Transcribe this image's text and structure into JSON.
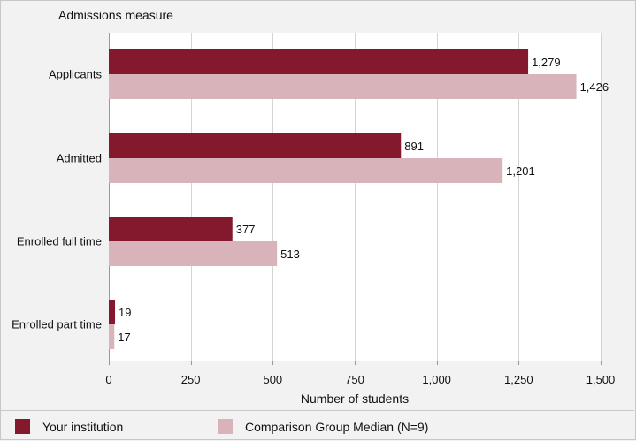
{
  "chart_data": {
    "type": "bar",
    "orientation": "horizontal",
    "title": "",
    "ylabel": "Admissions measure",
    "xlabel": "Number of students",
    "categories": [
      "Applicants",
      "Admitted",
      "Enrolled full time",
      "Enrolled part time"
    ],
    "series": [
      {
        "name": "Your institution",
        "values": [
          1279,
          891,
          377,
          19
        ],
        "labels": [
          "1,279",
          "891",
          "377",
          "19"
        ],
        "color": "#84182d"
      },
      {
        "name": "Comparison Group Median (N=9)",
        "values": [
          1426,
          1201,
          513,
          17
        ],
        "labels": [
          "1,426",
          "1,201",
          "513",
          "17"
        ],
        "color": "#d8b3ba"
      }
    ],
    "xlim": [
      0,
      1500
    ],
    "xticks": [
      0,
      250,
      500,
      750,
      1000,
      1250,
      1500
    ],
    "xtick_labels": [
      "0",
      "250",
      "500",
      "750",
      "1,000",
      "1,250",
      "1,500"
    ],
    "grid": "vertical",
    "legend_position": "bottom"
  }
}
